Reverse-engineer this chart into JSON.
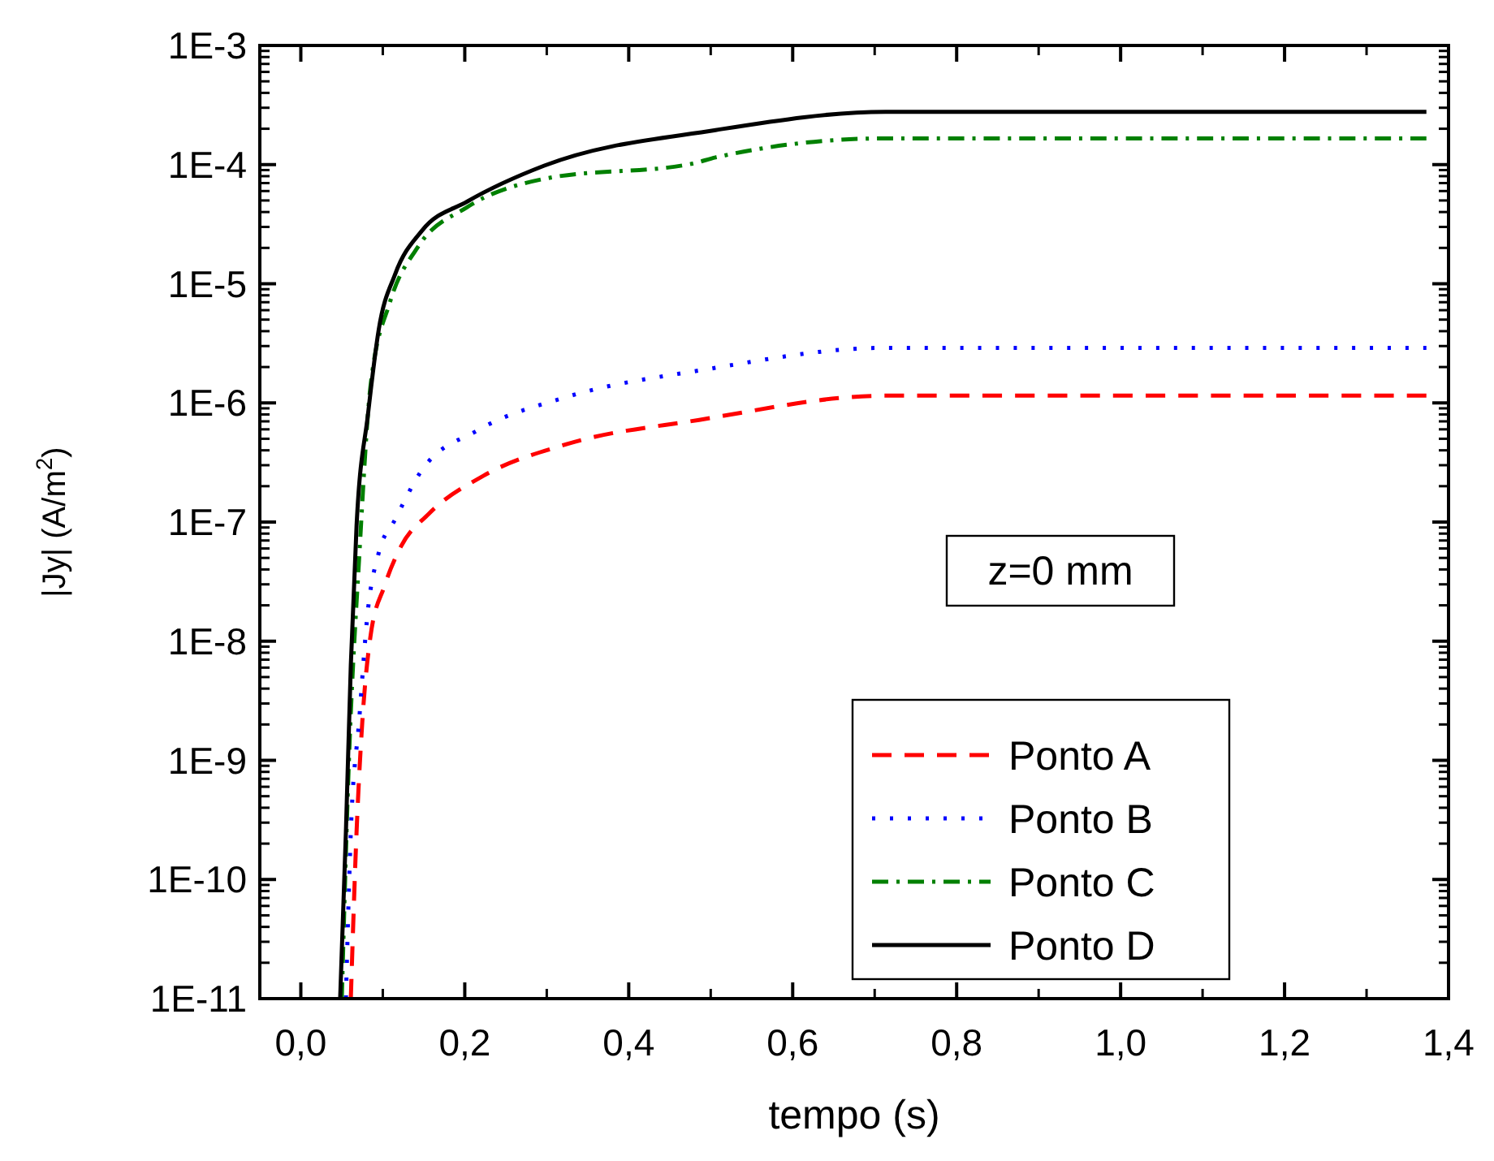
{
  "chart_data": {
    "type": "line",
    "xlabel": "tempo (s)",
    "ylabel": "|Jy| (A/m$^{2}$)",
    "log": "y",
    "xlim": [
      -0.05,
      1.4
    ],
    "xticks": [
      {
        "value": 0,
        "label": "0,0"
      },
      {
        "value": 0.2,
        "label": "0,2"
      },
      {
        "value": 0.4,
        "label": "0,4"
      },
      {
        "value": 0.6,
        "label": "0,6"
      },
      {
        "value": 0.8,
        "label": "0,8"
      },
      {
        "value": 1.0,
        "label": "1,0"
      },
      {
        "value": 1.2,
        "label": "1,2"
      },
      {
        "value": 1.4,
        "label": "1,4"
      }
    ],
    "ylim": [
      1e-11,
      0.001
    ],
    "yticks": [
      {
        "value": 1e-11,
        "label": "1E-11"
      },
      {
        "value": 1e-10,
        "label": "1E-10"
      },
      {
        "value": 1e-09,
        "label": "1E-9"
      },
      {
        "value": 1e-08,
        "label": "1E-8"
      },
      {
        "value": 1e-07,
        "label": "1E-7"
      },
      {
        "value": 1e-06,
        "label": "1E-6"
      },
      {
        "value": 1e-05,
        "label": "1E-5"
      },
      {
        "value": 0.0001,
        "label": "1E-4"
      },
      {
        "value": 0.001,
        "label": "1E-3"
      }
    ],
    "grid": false,
    "legend": "bottom right",
    "annotations": [
      "z=0 mm"
    ],
    "series": [
      {
        "name": "Ponto A",
        "color": "#ff0000",
        "line_style": "dashed",
        "x": [
          0.061,
          0.068,
          0.075,
          0.085,
          0.102,
          0.122,
          0.156,
          0.223,
          0.324,
          0.486,
          0.713,
          1.373
        ],
        "values": [
          1e-11,
          2.5e-10,
          2.1e-09,
          1.1e-08,
          2.9e-08,
          6.2e-08,
          1.17e-07,
          2.45e-07,
          4.5e-07,
          7.2e-07,
          1.15e-06,
          1.15e-06
        ]
      },
      {
        "name": "Ponto B",
        "color": "#0000ff",
        "line_style": "dotted",
        "x": [
          0.055,
          0.061,
          0.071,
          0.082,
          0.095,
          0.115,
          0.148,
          0.216,
          0.324,
          0.492,
          0.713,
          1.373
        ],
        "values": [
          1e-11,
          2.5e-10,
          2.1e-09,
          1.86e-08,
          5.5e-08,
          1.05e-07,
          2.75e-07,
          5.9e-07,
          1.12e-06,
          1.9e-06,
          2.9e-06,
          2.9e-06
        ]
      },
      {
        "name": "Ponto C",
        "color": "#008000",
        "line_style": "dashdot",
        "x": [
          0.05,
          0.058,
          0.0715,
          0.085,
          0.109,
          0.142,
          0.203,
          0.297,
          0.478,
          0.506,
          0.713,
          1.373
        ],
        "values": [
          1e-11,
          7.4e-10,
          5.5e-08,
          1.38e-06,
          7.1e-06,
          2e-05,
          4.4e-05,
          7.6e-05,
          0.000102,
          0.000115,
          0.000166,
          0.000166
        ]
      },
      {
        "name": "Ponto D",
        "color": "#000000",
        "line_style": "solid",
        "x": [
          0.048,
          0.055,
          0.061,
          0.068,
          0.082,
          0.095,
          0.115,
          0.148,
          0.203,
          0.297,
          0.506,
          0.713,
          1.373
        ],
        "values": [
          1e-11,
          2.5e-10,
          6.3e-09,
          9.3e-08,
          8.1e-07,
          4.1e-06,
          1.2e-05,
          2.8e-05,
          4.9e-05,
          9.8e-05,
          0.000195,
          0.000277,
          0.000277
        ]
      }
    ]
  }
}
